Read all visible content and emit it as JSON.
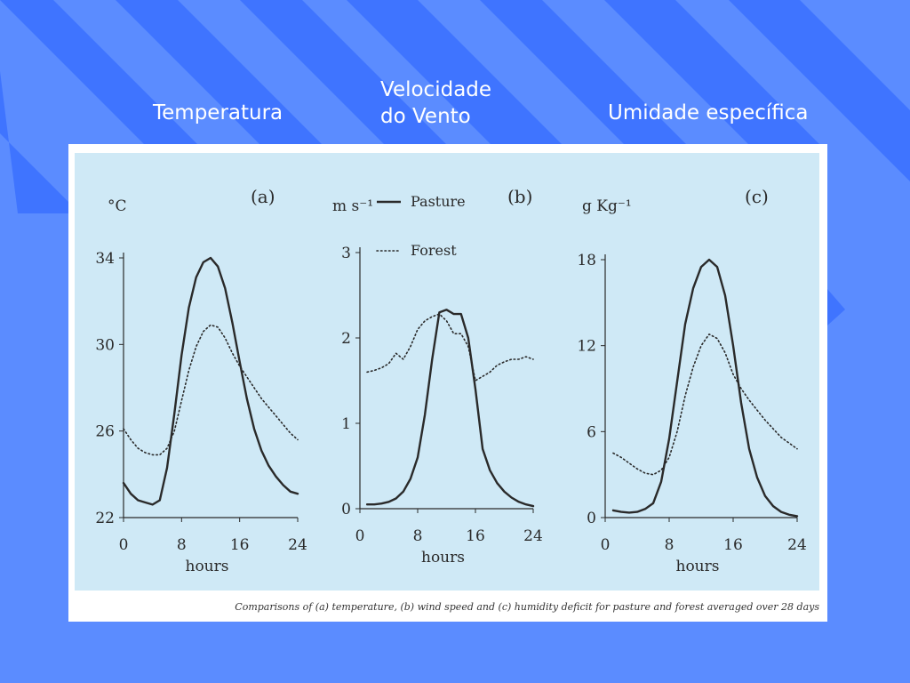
{
  "slide": {
    "title_temperature": "Temperatura",
    "title_wind": "Velocidade do Vento",
    "title_humidity": "Umidade específica",
    "background_color": "#5b8cff",
    "stripe_color": "#3f74ff"
  },
  "figure": {
    "caption": "Comparisons of (a) temperature, (b) wind speed and (c) humidity deficit for pasture and forest averaged over 28 days",
    "panel_color": "#cfe9f6",
    "legend": {
      "pasture": "Pasture",
      "forest": "Forest"
    }
  },
  "chart_data": [
    {
      "type": "line",
      "panel": "(a)",
      "unit": "°C",
      "xlabel": "hours",
      "xlim": [
        0,
        24
      ],
      "xticks": [
        "0",
        "8",
        "16",
        "24"
      ],
      "ylim": [
        22,
        34
      ],
      "yticks": [
        "22",
        "26",
        "30",
        "34"
      ],
      "x": [
        0,
        1,
        2,
        3,
        4,
        5,
        6,
        7,
        8,
        9,
        10,
        11,
        12,
        13,
        14,
        15,
        16,
        17,
        18,
        19,
        20,
        21,
        22,
        23,
        24
      ],
      "series": [
        {
          "name": "Pasture",
          "style": "solid",
          "values": [
            23.6,
            23.1,
            22.8,
            22.7,
            22.6,
            22.8,
            24.3,
            26.8,
            29.5,
            31.7,
            33.1,
            33.8,
            34.0,
            33.6,
            32.6,
            31.0,
            29.2,
            27.5,
            26.1,
            25.1,
            24.4,
            23.9,
            23.5,
            23.2,
            23.1
          ]
        },
        {
          "name": "Forest",
          "style": "dotted",
          "values": [
            26.1,
            25.6,
            25.2,
            25.0,
            24.9,
            24.9,
            25.2,
            26.0,
            27.4,
            28.8,
            29.9,
            30.6,
            30.9,
            30.8,
            30.3,
            29.6,
            29.0,
            28.5,
            28.0,
            27.5,
            27.1,
            26.7,
            26.3,
            25.9,
            25.6
          ]
        }
      ]
    },
    {
      "type": "line",
      "panel": "(b)",
      "unit": "m s⁻¹",
      "xlabel": "hours",
      "xlim": [
        0,
        24
      ],
      "xticks": [
        "0",
        "8",
        "16",
        "24"
      ],
      "ylim": [
        0,
        3
      ],
      "yticks": [
        "0",
        "1",
        "2",
        "3"
      ],
      "x": [
        1,
        2,
        3,
        4,
        5,
        6,
        7,
        8,
        9,
        10,
        11,
        12,
        13,
        14,
        15,
        16,
        17,
        18,
        19,
        20,
        21,
        22,
        23,
        24
      ],
      "series": [
        {
          "name": "Pasture",
          "style": "solid",
          "values": [
            0.05,
            0.05,
            0.06,
            0.08,
            0.12,
            0.2,
            0.35,
            0.6,
            1.1,
            1.75,
            2.3,
            2.33,
            2.28,
            2.28,
            2.0,
            1.4,
            0.7,
            0.45,
            0.3,
            0.2,
            0.13,
            0.08,
            0.05,
            0.03
          ]
        },
        {
          "name": "Forest",
          "style": "dotted",
          "values": [
            1.6,
            1.62,
            1.65,
            1.7,
            1.82,
            1.75,
            1.9,
            2.1,
            2.2,
            2.25,
            2.28,
            2.2,
            2.05,
            2.05,
            1.9,
            1.5,
            1.55,
            1.6,
            1.68,
            1.72,
            1.75,
            1.75,
            1.78,
            1.75
          ]
        }
      ]
    },
    {
      "type": "line",
      "panel": "(c)",
      "unit": "g Kg⁻¹",
      "xlabel": "hours",
      "xlim": [
        0,
        24
      ],
      "xticks": [
        "0",
        "8",
        "16",
        "24"
      ],
      "ylim": [
        0,
        18
      ],
      "yticks": [
        "0",
        "6",
        "12",
        "18"
      ],
      "x": [
        1,
        2,
        3,
        4,
        5,
        6,
        7,
        8,
        9,
        10,
        11,
        12,
        13,
        14,
        15,
        16,
        17,
        18,
        19,
        20,
        21,
        22,
        23,
        24
      ],
      "series": [
        {
          "name": "Pasture",
          "style": "solid",
          "values": [
            0.5,
            0.4,
            0.35,
            0.4,
            0.6,
            1.0,
            2.5,
            5.5,
            9.5,
            13.5,
            16.0,
            17.5,
            18.0,
            17.5,
            15.5,
            12.0,
            8.0,
            4.8,
            2.8,
            1.5,
            0.8,
            0.4,
            0.2,
            0.1
          ]
        },
        {
          "name": "Forest",
          "style": "dotted",
          "values": [
            4.5,
            4.2,
            3.8,
            3.4,
            3.1,
            3.0,
            3.3,
            4.2,
            6.0,
            8.5,
            10.5,
            12.0,
            12.8,
            12.5,
            11.5,
            10.0,
            9.0,
            8.2,
            7.5,
            6.8,
            6.2,
            5.6,
            5.2,
            4.8
          ]
        }
      ]
    }
  ]
}
